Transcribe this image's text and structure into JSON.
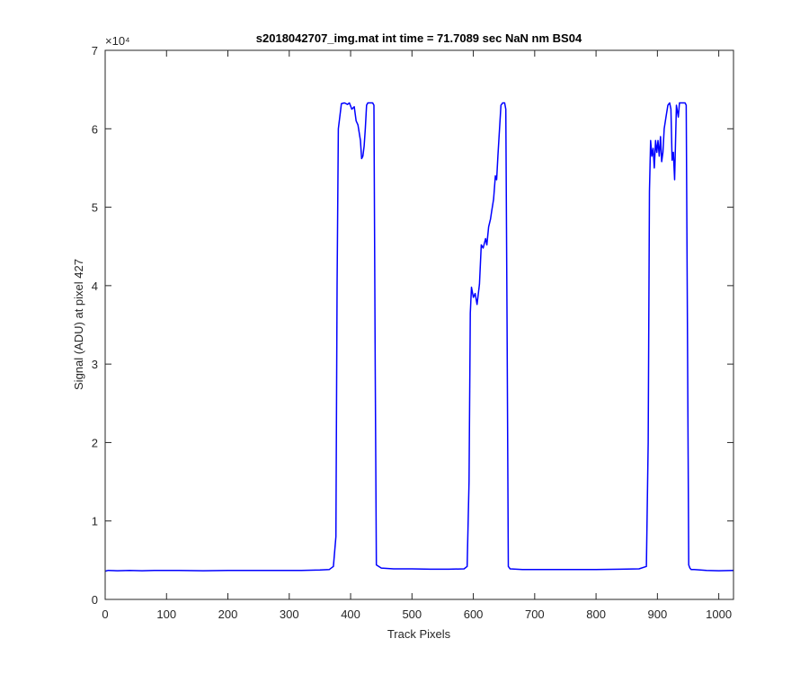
{
  "chart_data": {
    "type": "line",
    "title": "s2018042707_img.mat int time = 71.7089 sec  NaN nm BS04",
    "xlabel": "Track Pixels",
    "ylabel": "Signal (ADU) at pixel 427",
    "xlim": [
      0,
      1024
    ],
    "ylim": [
      0,
      70000
    ],
    "xticks": [
      0,
      100,
      200,
      300,
      400,
      500,
      600,
      700,
      800,
      900,
      1000
    ],
    "yticks": [
      0,
      1,
      2,
      3,
      4,
      5,
      6,
      7
    ],
    "y_exponent_label": "×10⁴",
    "line_color": "#0000ff",
    "grid": false,
    "series": [
      {
        "x": [
          0,
          5,
          20,
          40,
          60,
          80,
          120,
          160,
          200,
          240,
          280,
          320,
          350,
          365,
          372,
          376,
          378,
          380,
          385,
          390,
          395,
          398,
          402,
          406,
          409,
          412,
          414,
          416,
          418,
          420,
          422,
          424,
          426,
          428,
          432,
          436,
          438,
          440,
          442,
          450,
          470,
          500,
          530,
          560,
          585,
          590,
          593,
          595,
          597,
          600,
          603,
          606,
          610,
          613,
          616,
          620,
          622,
          625,
          628,
          630,
          633,
          636,
          638,
          640,
          642,
          645,
          648,
          651,
          653,
          655,
          657,
          660,
          680,
          720,
          760,
          800,
          840,
          870,
          882,
          885,
          887,
          889,
          891,
          893,
          895,
          897,
          899,
          901,
          903,
          905,
          907,
          909,
          911,
          914,
          917,
          920,
          922,
          924,
          926,
          928,
          931,
          934,
          936,
          939,
          942,
          945,
          947,
          949,
          951,
          953,
          955,
          960,
          980,
          1000,
          1024
        ],
        "y": [
          3600,
          3700,
          3650,
          3700,
          3650,
          3700,
          3700,
          3650,
          3700,
          3700,
          3700,
          3700,
          3750,
          3800,
          4200,
          8000,
          40000,
          60000,
          63200,
          63300,
          63100,
          63300,
          62500,
          62800,
          61000,
          60500,
          59500,
          58500,
          56200,
          56500,
          57800,
          60000,
          63000,
          63300,
          63300,
          63300,
          63000,
          30000,
          4400,
          4000,
          3900,
          3900,
          3850,
          3850,
          3900,
          4200,
          15000,
          36500,
          39800,
          38500,
          39000,
          37600,
          40200,
          45200,
          44800,
          46000,
          45200,
          47500,
          48500,
          49500,
          51000,
          54000,
          53500,
          56500,
          59000,
          63000,
          63300,
          63300,
          62500,
          35000,
          4200,
          3900,
          3800,
          3800,
          3800,
          3800,
          3850,
          3900,
          4200,
          20000,
          52000,
          58500,
          56500,
          57500,
          55000,
          58500,
          57000,
          58500,
          56500,
          59000,
          55800,
          57000,
          60000,
          61500,
          63000,
          63300,
          62500,
          56000,
          57000,
          53500,
          63000,
          61500,
          63300,
          63300,
          63300,
          63300,
          63000,
          34000,
          4400,
          4000,
          3800,
          3800,
          3700,
          3650,
          3700
        ]
      }
    ]
  }
}
